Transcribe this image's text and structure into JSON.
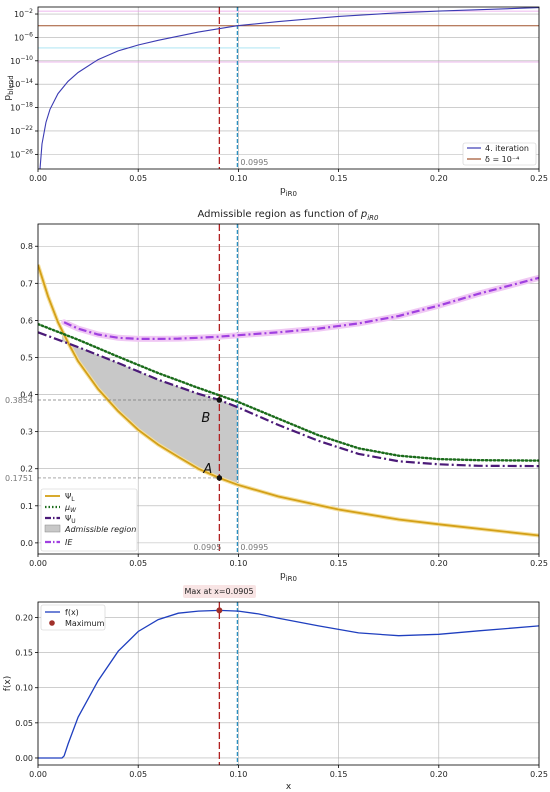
{
  "colors": {
    "p_blend": "#3b3bb3",
    "delta": "#a0522d",
    "psi_l": "#d4a017",
    "mu_w": "#1a6b1a",
    "psi_u": "#4b1a78",
    "admissible": "#c8c8c8",
    "ie": "#a040e0",
    "fx": "#1f3fbf",
    "maximum": "#a0302a",
    "vline_red": "#b22222",
    "vline_blue": "#2a8fbf"
  },
  "chart_data": [
    {
      "type": "line",
      "title": "",
      "xlabel": "p_iR0",
      "ylabel": "p_blend",
      "xlim": [
        0,
        0.25
      ],
      "ylim_log10": [
        -28.5,
        -0.8
      ],
      "y_scale": "log",
      "x_ticks": [
        "0.00",
        "0.05",
        "0.10",
        "0.15",
        "0.20",
        "0.25"
      ],
      "y_ticks": [
        {
          "exp": -2,
          "label": "10",
          "sup": "−2"
        },
        {
          "exp": -6,
          "label": "10",
          "sup": "−6"
        },
        {
          "exp": -10,
          "label": "10",
          "sup": "−10"
        },
        {
          "exp": -14,
          "label": "10",
          "sup": "−14"
        },
        {
          "exp": -18,
          "label": "10",
          "sup": "−18"
        },
        {
          "exp": -22,
          "label": "10",
          "sup": "−22"
        },
        {
          "exp": -26,
          "label": "10",
          "sup": "−26"
        }
      ],
      "series": [
        {
          "name": "4. iteration",
          "x": [
            0.001,
            0.002,
            0.004,
            0.006,
            0.01,
            0.015,
            0.02,
            0.03,
            0.04,
            0.05,
            0.06,
            0.08,
            0.0995,
            0.12,
            0.15,
            0.18,
            0.2,
            0.25
          ],
          "log10_y": [
            -28.5,
            -24.2,
            -20.5,
            -18.3,
            -15.6,
            -13.5,
            -12.0,
            -9.8,
            -8.3,
            -7.3,
            -6.5,
            -5.1,
            -4.0,
            -3.3,
            -2.4,
            -1.8,
            -1.5,
            -0.9
          ]
        },
        {
          "name": "δ = 10⁻⁴",
          "log10_y_constant": -4
        }
      ],
      "vline_label": "0.0995",
      "legend_position": "lower right"
    },
    {
      "type": "line",
      "title": "Admissible region as function of p_iR0",
      "xlabel": "p_iR0",
      "ylabel": "",
      "xlim": [
        0,
        0.25
      ],
      "ylim": [
        -0.03,
        0.86
      ],
      "x_ticks": [
        "0.00",
        "0.05",
        "0.10",
        "0.15",
        "0.20",
        "0.25"
      ],
      "y_ticks": [
        "0.0",
        "0.1",
        "0.2",
        "0.3",
        "0.4",
        "0.5",
        "0.6",
        "0.7",
        "0.8"
      ],
      "series": [
        {
          "name": "Ψ_L",
          "x": [
            0,
            0.005,
            0.01,
            0.015,
            0.02,
            0.03,
            0.04,
            0.05,
            0.06,
            0.07,
            0.08,
            0.0905,
            0.0995,
            0.12,
            0.15,
            0.18,
            0.2,
            0.25
          ],
          "y": [
            0.75,
            0.665,
            0.595,
            0.54,
            0.49,
            0.415,
            0.355,
            0.305,
            0.265,
            0.232,
            0.2,
            0.1751,
            0.157,
            0.125,
            0.09,
            0.063,
            0.05,
            0.02
          ]
        },
        {
          "name": "μ_W",
          "x": [
            0,
            0.02,
            0.04,
            0.06,
            0.08,
            0.0905,
            0.1,
            0.12,
            0.14,
            0.16,
            0.18,
            0.2,
            0.22,
            0.25
          ],
          "y": [
            0.59,
            0.548,
            0.502,
            0.458,
            0.418,
            0.398,
            0.38,
            0.335,
            0.29,
            0.255,
            0.235,
            0.226,
            0.223,
            0.222
          ]
        },
        {
          "name": "Ψ_U",
          "x": [
            0,
            0.02,
            0.04,
            0.06,
            0.08,
            0.0905,
            0.1,
            0.12,
            0.14,
            0.16,
            0.18,
            0.2,
            0.22,
            0.25
          ],
          "y": [
            0.568,
            0.528,
            0.485,
            0.44,
            0.402,
            0.3854,
            0.365,
            0.318,
            0.275,
            0.24,
            0.22,
            0.212,
            0.208,
            0.207
          ]
        },
        {
          "name": "Admissible region"
        },
        {
          "name": "IE",
          "x": [
            0.013,
            0.02,
            0.03,
            0.04,
            0.05,
            0.06,
            0.07,
            0.08,
            0.09,
            0.1,
            0.12,
            0.14,
            0.16,
            0.18,
            0.2,
            0.22,
            0.25
          ],
          "y": [
            0.595,
            0.578,
            0.562,
            0.553,
            0.55,
            0.55,
            0.551,
            0.553,
            0.556,
            0.56,
            0.568,
            0.578,
            0.592,
            0.612,
            0.64,
            0.672,
            0.715
          ]
        }
      ],
      "annotations": [
        {
          "text": "B",
          "x": 0.0905,
          "y": 0.3854
        },
        {
          "text": "A",
          "x": 0.0905,
          "y": 0.1751
        }
      ],
      "hline_labels": [
        "0.3854",
        "0.1751"
      ],
      "vline_labels": [
        "0.0905",
        "0.0995"
      ],
      "legend_position": "lower left"
    },
    {
      "type": "line",
      "title": "",
      "xlabel": "x",
      "ylabel": "f(x)",
      "xlim": [
        0,
        0.25
      ],
      "ylim": [
        -0.01,
        0.222
      ],
      "x_ticks": [
        "0.00",
        "0.05",
        "0.10",
        "0.15",
        "0.20",
        "0.25"
      ],
      "y_ticks": [
        "0.00",
        "0.05",
        "0.10",
        "0.15",
        "0.20"
      ],
      "series": [
        {
          "name": "f(x)",
          "x": [
            0,
            0.012,
            0.013,
            0.015,
            0.02,
            0.03,
            0.04,
            0.05,
            0.06,
            0.07,
            0.08,
            0.0905,
            0.1,
            0.11,
            0.12,
            0.14,
            0.16,
            0.18,
            0.2,
            0.22,
            0.25
          ],
          "y": [
            0,
            0,
            0.003,
            0.02,
            0.058,
            0.11,
            0.152,
            0.18,
            0.197,
            0.206,
            0.209,
            0.21,
            0.209,
            0.205,
            0.199,
            0.188,
            0.178,
            0.174,
            0.176,
            0.181,
            0.188
          ]
        },
        {
          "name": "Maximum",
          "x": [
            0.0905
          ],
          "y": [
            0.21
          ]
        }
      ],
      "max_label": "Max at x=0.0905",
      "legend_position": "upper left"
    }
  ]
}
